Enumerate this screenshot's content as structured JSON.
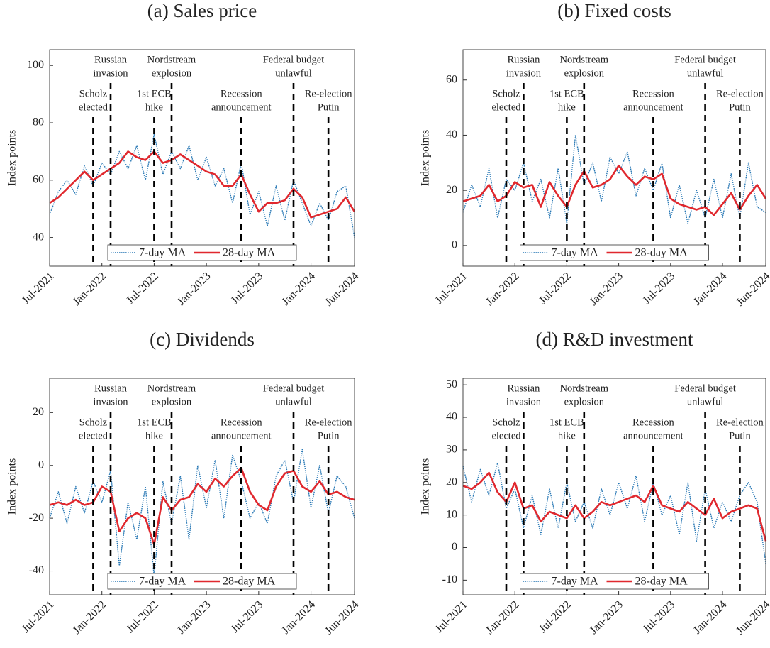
{
  "chart_data": [
    {
      "type": "line",
      "title": "(a) Sales price",
      "ylabel": "Index points",
      "x": [
        "2021-07",
        "2021-08",
        "2021-09",
        "2021-10",
        "2021-11",
        "2021-12",
        "2022-01",
        "2022-02",
        "2022-03",
        "2022-04",
        "2022-05",
        "2022-06",
        "2022-07",
        "2022-08",
        "2022-09",
        "2022-10",
        "2022-11",
        "2022-12",
        "2023-01",
        "2023-02",
        "2023-03",
        "2023-04",
        "2023-05",
        "2023-06",
        "2023-07",
        "2023-08",
        "2023-09",
        "2023-10",
        "2023-11",
        "2023-12",
        "2024-01",
        "2024-02",
        "2024-03",
        "2024-04",
        "2024-05",
        "2024-06"
      ],
      "series": [
        {
          "name": "7-day MA",
          "color": "#2878b5",
          "dash": true,
          "values": [
            48,
            56,
            60,
            55,
            65,
            58,
            66,
            62,
            70,
            64,
            72,
            60,
            76,
            62,
            70,
            64,
            72,
            60,
            68,
            58,
            64,
            52,
            66,
            48,
            56,
            44,
            58,
            46,
            60,
            52,
            44,
            52,
            46,
            56,
            58,
            40
          ]
        },
        {
          "name": "28-day MA",
          "color": "#e0282e",
          "dash": false,
          "values": [
            52,
            54,
            57,
            60,
            63,
            60,
            62,
            64,
            66,
            70,
            68,
            67,
            70,
            66,
            67,
            69,
            67,
            65,
            63,
            62,
            58,
            58,
            62,
            55,
            49,
            52,
            52,
            53,
            57,
            54,
            47,
            48,
            49,
            50,
            54,
            49
          ]
        }
      ],
      "xlim": [
        "2021-07",
        "2024-06"
      ],
      "xticks": [
        {
          "value": "2021-07",
          "label": "Jul-2021"
        },
        {
          "value": "2022-01",
          "label": "Jan-2022"
        },
        {
          "value": "2022-07",
          "label": "Jul-2022"
        },
        {
          "value": "2023-01",
          "label": "Jan-2023"
        },
        {
          "value": "2023-07",
          "label": "Jul-2023"
        },
        {
          "value": "2024-01",
          "label": "Jan-2024"
        },
        {
          "value": "2024-06",
          "label": "Jun-2024"
        }
      ],
      "ylim": [
        30,
        105.5
      ],
      "yticks": [
        40,
        60,
        80,
        100
      ],
      "legend": "lower center",
      "events": [
        {
          "x": "2021-12",
          "label": [
            "Scholz",
            "elected"
          ]
        },
        {
          "x": "2022-02",
          "label": [
            "Russian",
            "invasion"
          ]
        },
        {
          "x": "2022-07",
          "label": [
            "1st ECB",
            "hike"
          ]
        },
        {
          "x": "2022-09",
          "label": [
            "Nordstream",
            "explosion"
          ]
        },
        {
          "x": "2023-05",
          "label": [
            "Recession",
            "announcement"
          ]
        },
        {
          "x": "2023-11",
          "label": [
            "Federal budget",
            "unlawful"
          ]
        },
        {
          "x": "2024-03",
          "label": [
            "Re-election",
            "Putin"
          ]
        }
      ]
    },
    {
      "type": "line",
      "title": "(b) Fixed costs",
      "ylabel": "Index points",
      "x": [
        "2021-07",
        "2021-08",
        "2021-09",
        "2021-10",
        "2021-11",
        "2021-12",
        "2022-01",
        "2022-02",
        "2022-03",
        "2022-04",
        "2022-05",
        "2022-06",
        "2022-07",
        "2022-08",
        "2022-09",
        "2022-10",
        "2022-11",
        "2022-12",
        "2023-01",
        "2023-02",
        "2023-03",
        "2023-04",
        "2023-05",
        "2023-06",
        "2023-07",
        "2023-08",
        "2023-09",
        "2023-10",
        "2023-11",
        "2023-12",
        "2024-01",
        "2024-02",
        "2024-03",
        "2024-04",
        "2024-05",
        "2024-06"
      ],
      "series": [
        {
          "name": "7-day MA",
          "color": "#2878b5",
          "dash": true,
          "values": [
            12,
            22,
            14,
            28,
            10,
            24,
            20,
            30,
            16,
            24,
            10,
            28,
            8,
            40,
            22,
            30,
            16,
            32,
            26,
            34,
            18,
            28,
            20,
            30,
            10,
            22,
            8,
            20,
            10,
            24,
            10,
            26,
            10,
            30,
            14,
            12
          ]
        },
        {
          "name": "28-day MA",
          "color": "#e0282e",
          "dash": false,
          "values": [
            16,
            17,
            18,
            22,
            16,
            18,
            23,
            21,
            22,
            14,
            23,
            18,
            14,
            22,
            27,
            21,
            22,
            24,
            29,
            25,
            22,
            25,
            24,
            26,
            17,
            15,
            14,
            13,
            14,
            11,
            15,
            19,
            13,
            18,
            22,
            17
          ]
        }
      ],
      "xlim": [
        "2021-07",
        "2024-06"
      ],
      "xticks": [
        {
          "value": "2021-07",
          "label": "Jul-2021"
        },
        {
          "value": "2022-01",
          "label": "Jan-2022"
        },
        {
          "value": "2022-07",
          "label": "Jul-2022"
        },
        {
          "value": "2023-01",
          "label": "Jan-2023"
        },
        {
          "value": "2023-07",
          "label": "Jul-2023"
        },
        {
          "value": "2024-01",
          "label": "Jan-2024"
        },
        {
          "value": "2024-06",
          "label": "Jun-2024"
        }
      ],
      "ylim": [
        -7.5,
        71
      ],
      "yticks": [
        0,
        20,
        40,
        60
      ],
      "legend": "lower center",
      "events": [
        {
          "x": "2021-12",
          "label": [
            "Scholz",
            "elected"
          ]
        },
        {
          "x": "2022-02",
          "label": [
            "Russian",
            "invasion"
          ]
        },
        {
          "x": "2022-07",
          "label": [
            "1st ECB",
            "hike"
          ]
        },
        {
          "x": "2022-09",
          "label": [
            "Nordstream",
            "explosion"
          ]
        },
        {
          "x": "2023-05",
          "label": [
            "Recession",
            "announcement"
          ]
        },
        {
          "x": "2023-11",
          "label": [
            "Federal budget",
            "unlawful"
          ]
        },
        {
          "x": "2024-03",
          "label": [
            "Re-election",
            "Putin"
          ]
        }
      ]
    },
    {
      "type": "line",
      "title": "(c) Dividends",
      "ylabel": "Index points",
      "x": [
        "2021-07",
        "2021-08",
        "2021-09",
        "2021-10",
        "2021-11",
        "2021-12",
        "2022-01",
        "2022-02",
        "2022-03",
        "2022-04",
        "2022-05",
        "2022-06",
        "2022-07",
        "2022-08",
        "2022-09",
        "2022-10",
        "2022-11",
        "2022-12",
        "2023-01",
        "2023-02",
        "2023-03",
        "2023-04",
        "2023-05",
        "2023-06",
        "2023-07",
        "2023-08",
        "2023-09",
        "2023-10",
        "2023-11",
        "2023-12",
        "2024-01",
        "2024-02",
        "2024-03",
        "2024-04",
        "2024-05",
        "2024-06"
      ],
      "series": [
        {
          "name": "7-day MA",
          "color": "#2878b5",
          "dash": true,
          "values": [
            -20,
            -10,
            -22,
            -8,
            -18,
            -6,
            -14,
            -2,
            -38,
            -14,
            -28,
            -8,
            -42,
            -6,
            -22,
            -4,
            -28,
            0,
            -16,
            2,
            -20,
            4,
            -6,
            -20,
            -14,
            -22,
            -4,
            2,
            -14,
            6,
            -16,
            0,
            -18,
            -4,
            -8,
            -20
          ]
        },
        {
          "name": "28-day MA",
          "color": "#e0282e",
          "dash": false,
          "values": [
            -15,
            -14,
            -15,
            -13,
            -15,
            -14,
            -8,
            -10,
            -25,
            -20,
            -18,
            -20,
            -30,
            -12,
            -17,
            -13,
            -12,
            -7,
            -10,
            -5,
            -8,
            -4,
            -1,
            -10,
            -15,
            -17,
            -8,
            -3,
            -2,
            -8,
            -10,
            -6,
            -11,
            -10,
            -12,
            -13
          ]
        }
      ],
      "xlim": [
        "2021-07",
        "2024-06"
      ],
      "xticks": [
        {
          "value": "2021-07",
          "label": "Jul-2021"
        },
        {
          "value": "2022-01",
          "label": "Jan-2022"
        },
        {
          "value": "2022-07",
          "label": "Jul-2022"
        },
        {
          "value": "2023-01",
          "label": "Jan-2023"
        },
        {
          "value": "2023-07",
          "label": "Jul-2023"
        },
        {
          "value": "2024-01",
          "label": "Jan-2024"
        },
        {
          "value": "2024-06",
          "label": "Jun-2024"
        }
      ],
      "ylim": [
        -49,
        33
      ],
      "yticks": [
        -40,
        -20,
        0,
        20
      ],
      "legend": "lower center",
      "events": [
        {
          "x": "2021-12",
          "label": [
            "Scholz",
            "elected"
          ]
        },
        {
          "x": "2022-02",
          "label": [
            "Russian",
            "invasion"
          ]
        },
        {
          "x": "2022-07",
          "label": [
            "1st ECB",
            "hike"
          ]
        },
        {
          "x": "2022-09",
          "label": [
            "Nordstream",
            "explosion"
          ]
        },
        {
          "x": "2023-05",
          "label": [
            "Recession",
            "announcement"
          ]
        },
        {
          "x": "2023-11",
          "label": [
            "Federal budget",
            "unlawful"
          ]
        },
        {
          "x": "2024-03",
          "label": [
            "Re-election",
            "Putin"
          ]
        }
      ]
    },
    {
      "type": "line",
      "title": "(d) R&D investment",
      "ylabel": "Index points",
      "x": [
        "2021-07",
        "2021-08",
        "2021-09",
        "2021-10",
        "2021-11",
        "2021-12",
        "2022-01",
        "2022-02",
        "2022-03",
        "2022-04",
        "2022-05",
        "2022-06",
        "2022-07",
        "2022-08",
        "2022-09",
        "2022-10",
        "2022-11",
        "2022-12",
        "2023-01",
        "2023-02",
        "2023-03",
        "2023-04",
        "2023-05",
        "2023-06",
        "2023-07",
        "2023-08",
        "2023-09",
        "2023-10",
        "2023-11",
        "2023-12",
        "2024-01",
        "2024-02",
        "2024-03",
        "2024-04",
        "2024-05",
        "2024-06"
      ],
      "series": [
        {
          "name": "7-day MA",
          "color": "#2878b5",
          "dash": true,
          "values": [
            25,
            14,
            24,
            16,
            26,
            12,
            18,
            6,
            16,
            4,
            18,
            6,
            20,
            8,
            14,
            6,
            18,
            10,
            20,
            12,
            22,
            8,
            20,
            10,
            16,
            4,
            20,
            2,
            18,
            6,
            14,
            8,
            16,
            20,
            14,
            -5
          ]
        },
        {
          "name": "28-day MA",
          "color": "#e0282e",
          "dash": false,
          "values": [
            19,
            18,
            20,
            23,
            17,
            14,
            20,
            12,
            13,
            8,
            11,
            10,
            9,
            13,
            9,
            11,
            14,
            13,
            14,
            15,
            16,
            14,
            19,
            13,
            12,
            11,
            14,
            12,
            10,
            15,
            9,
            11,
            12,
            13,
            12,
            2
          ]
        }
      ],
      "xlim": [
        "2021-07",
        "2024-06"
      ],
      "xticks": [
        {
          "value": "2021-07",
          "label": "Jul-2021"
        },
        {
          "value": "2022-01",
          "label": "Jan-2022"
        },
        {
          "value": "2022-07",
          "label": "Jul-2022"
        },
        {
          "value": "2023-01",
          "label": "Jan-2023"
        },
        {
          "value": "2023-07",
          "label": "Jul-2023"
        },
        {
          "value": "2024-01",
          "label": "Jan-2024"
        },
        {
          "value": "2024-06",
          "label": "Jun-2024"
        }
      ],
      "ylim": [
        -14.5,
        52
      ],
      "yticks": [
        -10,
        0,
        10,
        20,
        30,
        40,
        50
      ],
      "legend": "lower center",
      "events": [
        {
          "x": "2021-12",
          "label": [
            "Scholz",
            "elected"
          ]
        },
        {
          "x": "2022-02",
          "label": [
            "Russian",
            "invasion"
          ]
        },
        {
          "x": "2022-07",
          "label": [
            "1st ECB",
            "hike"
          ]
        },
        {
          "x": "2022-09",
          "label": [
            "Nordstream",
            "explosion"
          ]
        },
        {
          "x": "2023-05",
          "label": [
            "Recession",
            "announcement"
          ]
        },
        {
          "x": "2023-11",
          "label": [
            "Federal budget",
            "unlawful"
          ]
        },
        {
          "x": "2024-03",
          "label": [
            "Re-election",
            "Putin"
          ]
        }
      ]
    }
  ]
}
